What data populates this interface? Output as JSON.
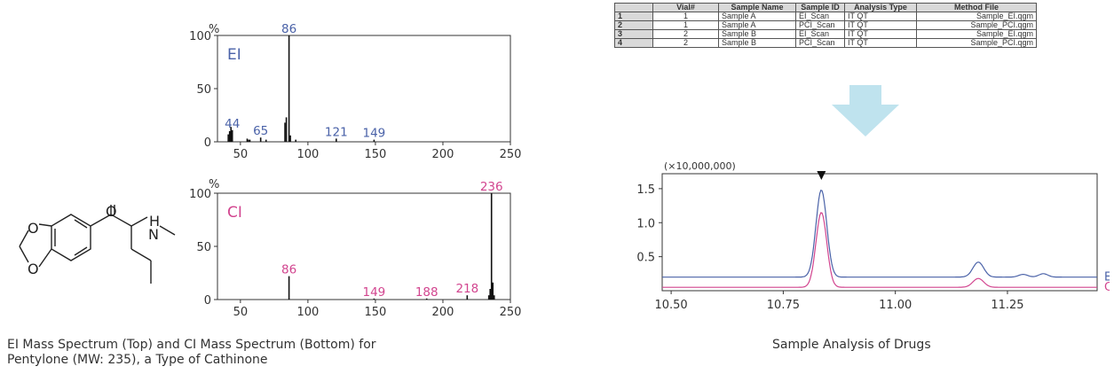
{
  "colors": {
    "ei": "#4a62a8",
    "ci": "#d2458f",
    "axis": "#333333",
    "arrow": "#bfe3ee"
  },
  "molecule": {
    "name": "Pentylone",
    "atoms": [
      "O",
      "O",
      "O",
      "H",
      "N"
    ]
  },
  "caption_left": {
    "line1": "EI Mass Spectrum (Top) and CI Mass Spectrum (Bottom) for",
    "line2": "Pentylone (MW: 235), a Type of Cathinone"
  },
  "caption_right": "Sample Analysis of Drugs",
  "sequence_table": {
    "headers": [
      "",
      "Vial#",
      "Sample Name",
      "Sample ID",
      "Analysis Type",
      "Method File"
    ],
    "rows": [
      [
        "1",
        "1",
        "Sample A",
        "EI_Scan",
        "IT QT",
        "Sample_EI.qgm"
      ],
      [
        "2",
        "1",
        "Sample A",
        "PCI_Scan",
        "IT QT",
        "Sample_PCI.qgm"
      ],
      [
        "3",
        "2",
        "Sample B",
        "EI_Scan",
        "IT QT",
        "Sample_EI.qgm"
      ],
      [
        "4",
        "2",
        "Sample B",
        "PCI_Scan",
        "IT QT",
        "Sample_PCI.qgm"
      ]
    ]
  },
  "chart_data": [
    {
      "id": "ei",
      "type": "bar",
      "label": "EI",
      "y_unit": "%",
      "xlim": [
        33,
        250
      ],
      "ylim": [
        0,
        100
      ],
      "xticks": [
        50,
        100,
        150,
        200,
        250
      ],
      "yticks": [
        0,
        50,
        100
      ],
      "peaks": [
        [
          41,
          7
        ],
        [
          42,
          10
        ],
        [
          43,
          14
        ],
        [
          44,
          11
        ],
        [
          55,
          3
        ],
        [
          56,
          2
        ],
        [
          57,
          2
        ],
        [
          65,
          4
        ],
        [
          69,
          2
        ],
        [
          83,
          18
        ],
        [
          84,
          23
        ],
        [
          86,
          100
        ],
        [
          87,
          6
        ],
        [
          91,
          2
        ],
        [
          121,
          3
        ],
        [
          149,
          2
        ]
      ],
      "labels": [
        44,
        65,
        86,
        121,
        149
      ]
    },
    {
      "id": "ci",
      "type": "bar",
      "label": "CI",
      "y_unit": "%",
      "xlim": [
        33,
        250
      ],
      "ylim": [
        0,
        100
      ],
      "xticks": [
        50,
        100,
        150,
        200,
        250
      ],
      "yticks": [
        0,
        50,
        100
      ],
      "peaks": [
        [
          86,
          22
        ],
        [
          149,
          1
        ],
        [
          188,
          1
        ],
        [
          218,
          4
        ],
        [
          234,
          4
        ],
        [
          235,
          10
        ],
        [
          236,
          100
        ],
        [
          237,
          16
        ],
        [
          238,
          4
        ]
      ],
      "labels": [
        86,
        149,
        188,
        218,
        236
      ]
    },
    {
      "id": "tic",
      "type": "line",
      "y_multiplier": "(×10,000,000)",
      "xlim": [
        10.48,
        11.45
      ],
      "ylim": [
        0,
        1.72
      ],
      "xticks": [
        "10.50",
        "10.75",
        "11.00",
        "11.25"
      ],
      "yticks": [
        "0.5",
        "1.0",
        "1.5"
      ],
      "marker_x": 10.835,
      "series": [
        {
          "name": "EI Data",
          "baseline": 0.2,
          "peaks": [
            [
              10.835,
              1.28,
              0.012
            ],
            [
              11.185,
              0.22,
              0.012
            ],
            [
              11.285,
              0.04,
              0.01
            ],
            [
              11.33,
              0.05,
              0.01
            ]
          ]
        },
        {
          "name": "CI Data",
          "baseline": 0.05,
          "peaks": [
            [
              10.835,
              1.1,
              0.012
            ],
            [
              11.185,
              0.13,
              0.012
            ]
          ]
        }
      ]
    }
  ]
}
